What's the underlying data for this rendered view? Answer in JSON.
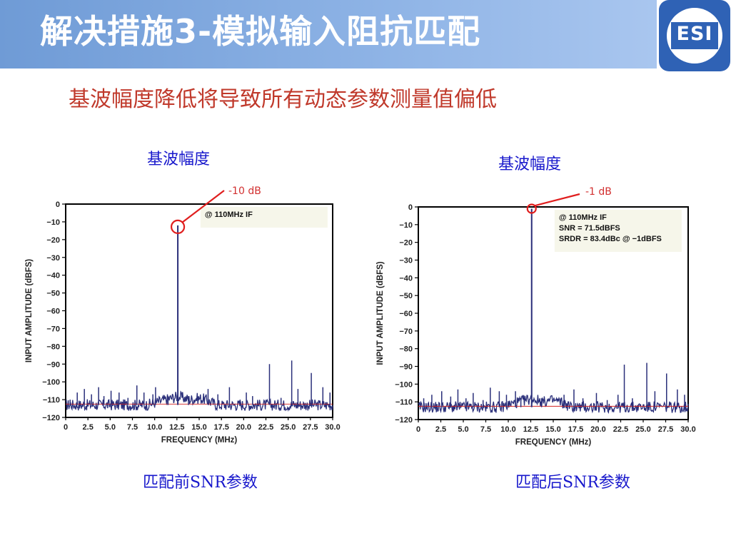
{
  "slide": {
    "title": "解决措施3-模拟输入阻抗匹配",
    "subtitle": "基波幅度降低将导致所有动态参数测量值偏低",
    "logo_text": "ESI"
  },
  "labels": {
    "left_top": "基波幅度",
    "right_top": "基波幅度",
    "left_bottom": "匹配前SNR参数",
    "right_bottom": "匹配后SNR参数"
  },
  "chart_data": [
    {
      "type": "line",
      "title": "",
      "xlabel": "FREQUENCY (MHz)",
      "ylabel": "INPUT AMPLITUDE (dBFS)",
      "xlim": [
        0,
        30
      ],
      "ylim": [
        -120,
        0
      ],
      "xticks": [
        "0",
        "2.5",
        "5.0",
        "7.5",
        "10.0",
        "12.5",
        "15.0",
        "17.5",
        "20.0",
        "22.5",
        "25.0",
        "27.5",
        "30.0"
      ],
      "yticks": [
        "0",
        "−10",
        "−20",
        "−30",
        "−40",
        "−50",
        "−60",
        "−70",
        "−80",
        "−90",
        "−100",
        "−110",
        "−120"
      ],
      "legend_text": [
        "@ 110MHz IF"
      ],
      "annotation": "-10 dB",
      "noise_floor": -113,
      "series": [
        {
          "x": [
            0.5,
            1.3,
            2.1,
            2.9,
            3.7,
            4.3,
            5.1,
            6.0,
            7.0,
            8.0,
            8.8,
            9.8,
            10.1,
            11.5,
            12.6,
            13.8,
            16.0,
            17.1,
            18.4,
            19.6,
            20.3,
            21.0,
            22.9,
            24.2,
            25.4,
            26.1,
            27.6,
            28.9,
            29.7
          ],
          "values": [
            -110,
            -106,
            -104,
            -107,
            -103,
            -108,
            -105,
            -106,
            -109,
            -102,
            -106,
            -107,
            -103,
            -108,
            -12,
            -108,
            -104,
            -107,
            -103,
            -110,
            -106,
            -108,
            -90,
            -109,
            -88,
            -104,
            -95,
            -103,
            -106
          ]
        }
      ]
    },
    {
      "type": "line",
      "title": "",
      "xlabel": "FREQUENCY (MHz)",
      "ylabel": "INPUT AMPLITUDE (dBFS)",
      "xlim": [
        0,
        30
      ],
      "ylim": [
        -120,
        0
      ],
      "xticks": [
        "0",
        "2.5",
        "5.0",
        "7.5",
        "10.0",
        "12.5",
        "15.0",
        "17.5",
        "20.0",
        "22.5",
        "25.0",
        "27.5",
        "30.0"
      ],
      "yticks": [
        "0",
        "−10",
        "−20",
        "−30",
        "−40",
        "−50",
        "−60",
        "−70",
        "−80",
        "−90",
        "−100",
        "−110",
        "−120"
      ],
      "legend_text": [
        "@ 110MHz IF",
        "SNR = 71.5dBFS",
        "SRDR = 83.4dBc @ −1dBFS"
      ],
      "annotation": "-1 dB",
      "noise_floor": -113,
      "series": [
        {
          "x": [
            0.6,
            1.5,
            2.6,
            3.6,
            4.4,
            5.3,
            6.1,
            7.2,
            8.0,
            9.0,
            9.8,
            10.8,
            11.4,
            12.6,
            13.7,
            16.2,
            17.3,
            18.3,
            19.8,
            21.0,
            22.2,
            22.9,
            23.8,
            25.4,
            26.3,
            27.6,
            28.8,
            29.6
          ],
          "values": [
            -108,
            -106,
            -104,
            -107,
            -103,
            -108,
            -105,
            -109,
            -102,
            -104,
            -106,
            -104,
            -108,
            -1,
            -108,
            -106,
            -103,
            -108,
            -105,
            -109,
            -106,
            -89,
            -108,
            -88,
            -104,
            -94,
            -103,
            -106
          ]
        }
      ]
    }
  ]
}
